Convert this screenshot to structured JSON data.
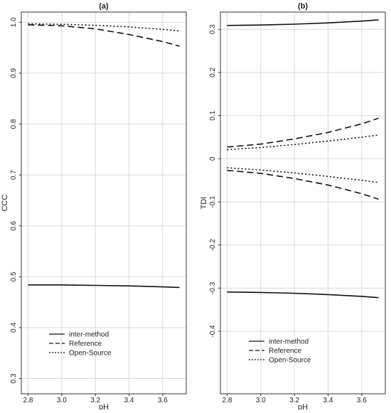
{
  "chart_data": [
    {
      "type": "line",
      "title": "(a)",
      "xlabel": "pH",
      "ylabel": "CCC",
      "xlim": [
        2.76,
        3.74
      ],
      "ylim": [
        0.27,
        1.02
      ],
      "xticks": [
        "2.8",
        "3.0",
        "3.2",
        "3.4",
        "3.6"
      ],
      "yticks": [
        "0.3",
        "0.4",
        "0.5",
        "0.6",
        "0.7",
        "0.8",
        "0.9",
        "1.0"
      ],
      "grid": true,
      "legend_position": "bottom-center",
      "x": [
        2.8,
        3.0,
        3.2,
        3.4,
        3.6,
        3.7
      ],
      "series": [
        {
          "name": "inter-method",
          "dash": "solid",
          "lines": [
            [
              0.484,
              0.484,
              0.483,
              0.482,
              0.48,
              0.479
            ]
          ]
        },
        {
          "name": "Reference",
          "dash": "dashed",
          "lines": [
            [
              0.995,
              0.993,
              0.987,
              0.976,
              0.962,
              0.953
            ]
          ]
        },
        {
          "name": "Open-Source",
          "dash": "dotted",
          "lines": [
            [
              0.997,
              0.996,
              0.994,
              0.991,
              0.986,
              0.983
            ]
          ]
        }
      ]
    },
    {
      "type": "line",
      "title": "(b)",
      "xlabel": "pH",
      "ylabel": "TDI",
      "xlim": [
        2.76,
        3.74
      ],
      "ylim": [
        -0.545,
        0.34
      ],
      "xticks": [
        "2.8",
        "3.0",
        "3.2",
        "3.4",
        "3.6"
      ],
      "yticks": [
        "-0.4",
        "-0.3",
        "-0.2",
        "-0.1",
        "0",
        "0.1",
        "0.2",
        "0.3"
      ],
      "grid": true,
      "legend_position": "bottom-center",
      "x": [
        2.8,
        3.0,
        3.2,
        3.4,
        3.6,
        3.7
      ],
      "series": [
        {
          "name": "inter-method",
          "dash": "solid",
          "lines": [
            [
              0.309,
              0.31,
              0.312,
              0.315,
              0.319,
              0.322
            ],
            [
              -0.309,
              -0.31,
              -0.312,
              -0.315,
              -0.319,
              -0.322
            ]
          ]
        },
        {
          "name": "Reference",
          "dash": "dashed",
          "lines": [
            [
              0.027,
              0.034,
              0.046,
              0.061,
              0.081,
              0.094
            ],
            [
              -0.027,
              -0.034,
              -0.046,
              -0.061,
              -0.081,
              -0.094
            ]
          ]
        },
        {
          "name": "Open-Source",
          "dash": "dotted",
          "lines": [
            [
              0.021,
              0.026,
              0.033,
              0.041,
              0.05,
              0.055
            ],
            [
              -0.021,
              -0.026,
              -0.033,
              -0.041,
              -0.05,
              -0.055
            ]
          ]
        }
      ]
    }
  ]
}
